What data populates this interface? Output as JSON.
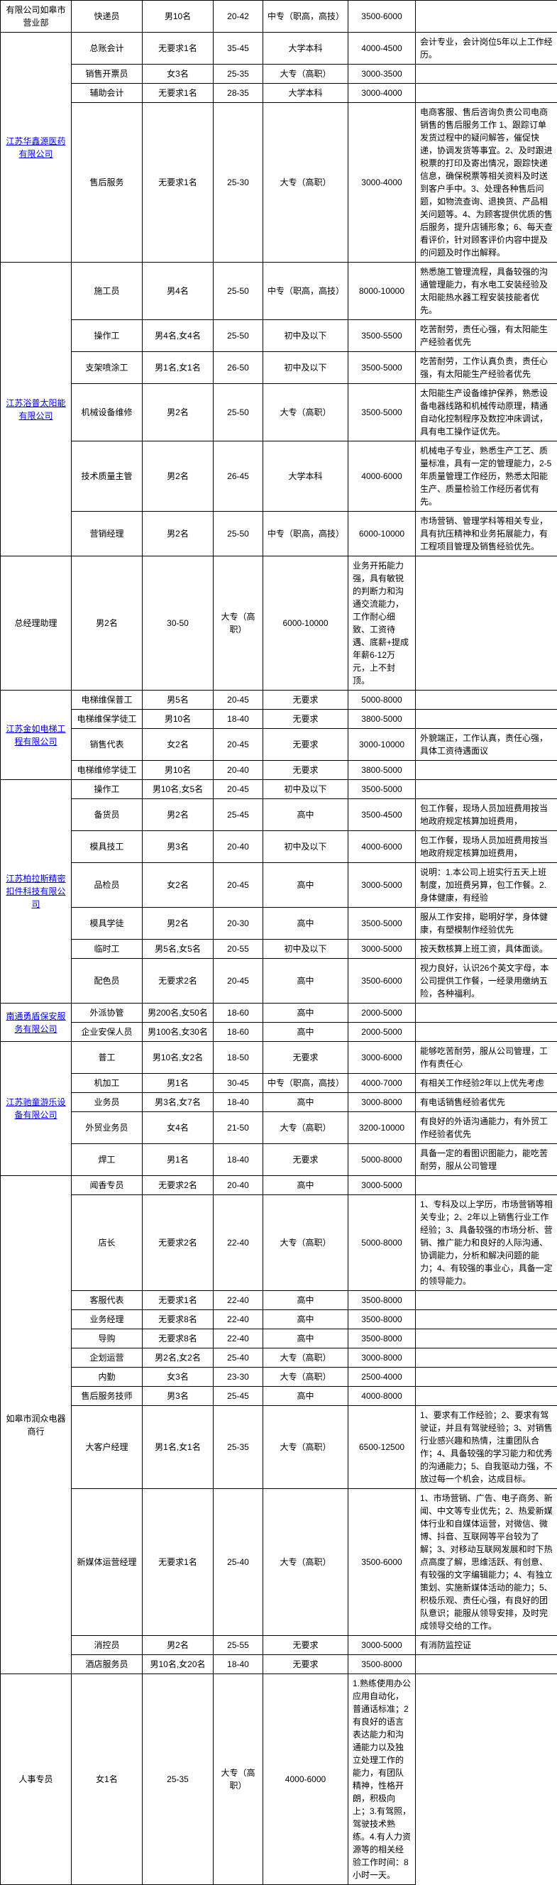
{
  "rows": [
    {
      "company": "有限公司如皋市营业部",
      "company_rowspan": 1,
      "company_class": "company-name",
      "position": "快递员",
      "count": "男10名",
      "age": "20-42",
      "edu": "中专（职高，高技）",
      "salary": "3500-6000",
      "remark": ""
    },
    {
      "company": "江苏华鑫源医药有限公司",
      "company_rowspan": 4,
      "company_class": "company-link",
      "position": "总账会计",
      "count": "无要求1名",
      "age": "35-45",
      "edu": "大学本科",
      "salary": "4000-4500",
      "remark": "会计专业，会计岗位5年以上工作经历。"
    },
    {
      "position": "销售开票员",
      "count": "女3名",
      "age": "25-35",
      "edu": "大专（高职）",
      "salary": "3000-3500",
      "remark": ""
    },
    {
      "position": "辅助会计",
      "count": "无要求1名",
      "age": "28-35",
      "edu": "大学本科",
      "salary": "3000-4000",
      "remark": ""
    },
    {
      "position": "售后服务",
      "count": "无要求1名",
      "age": "25-30",
      "edu": "大专（高职）",
      "salary": "3000-4000",
      "remark": "电商客服、售后咨询负责公司电商销售的售后服务工作 1、跟踪订单发货过程中的疑问解答，催促快递，协调发货等事宜。2、及时跟进税票的打印及寄出情况，跟踪快递信息，确保税票等相关资料及时送到客户手中。3、处理各种售后问题，如物流查询、退换货、产品相关问题等。4、为顾客提供优质的售后服务，提升店铺形象；6、每天查看评价，针对顾客评价内容中提及的问题及时作出解释。"
    },
    {
      "company": "江苏浴普太阳能有限公司",
      "company_rowspan": 6,
      "company_class": "company-link",
      "position": "施工员",
      "count": "男4名",
      "age": "25-50",
      "edu": "中专（职高，高技）",
      "salary": "8000-10000",
      "remark": "熟悉施工管理流程，具备较强的沟通管理能力，有水电工安装经验及太阳能热水器工程安装技能者优先。"
    },
    {
      "position": "操作工",
      "count": "男4名,女4名",
      "age": "25-50",
      "edu": "初中及以下",
      "salary": "3500-5500",
      "remark": "吃苦耐劳，责任心强，有太阳能生产经验者优先"
    },
    {
      "position": "支架喷涂工",
      "count": "男1名,女1名",
      "age": "26-50",
      "edu": "初中及以下",
      "salary": "3500-5000",
      "remark": "吃苦耐劳，工作认真负责，责任心强，有太阳能生产经验者优先"
    },
    {
      "position": "机械设备维修",
      "count": "男2名",
      "age": "25-50",
      "edu": "大专（高职）",
      "salary": "3500-5000",
      "remark": "太阳能生产设备维护保养，熟悉设备电器线路和机械传动原理，精通自动化控制程序及数控冲床调试，具有电工操作证优先。"
    },
    {
      "position": "技术质量主管",
      "count": "男2名",
      "age": "26-45",
      "edu": "大学本科",
      "salary": "4000-6000",
      "remark": "机械电子专业，熟悉生产工艺、质量标准，具有一定的管理能力，2-5年质量管理工作经历，熟悉太阳能生产、质量检验工作经历者优有先。"
    },
    {
      "position": "营销经理",
      "count": "男2名",
      "age": "25-50",
      "edu": "中专（职高，高技）",
      "salary": "6000-10000",
      "remark": "市场营销、管理学科等相关专业，具有抗压精神和业务拓展能力，有工程项目管理及销售经验优先。"
    },
    {
      "company": "",
      "company_rowspan": 1,
      "company_class": "",
      "position": "总经理助理",
      "count": "男2名",
      "age": "30-50",
      "edu": "大专（高职）",
      "salary": "6000-10000",
      "remark": "业务开拓能力强，具有敏锐的判断力和沟通交流能力，工作耐心细致、工资待遇、底薪+提成年薪6-12万元，上不封顶。",
      "company_hidden": true
    },
    {
      "company": "江苏金如电梯工程有限公司",
      "company_rowspan": 4,
      "company_class": "company-link",
      "position": "电梯维保普工",
      "count": "男5名",
      "age": "20-45",
      "edu": "无要求",
      "salary": "5000-8000",
      "remark": ""
    },
    {
      "position": "电梯维保学徒工",
      "count": "男10名",
      "age": "18-40",
      "edu": "无要求",
      "salary": "3800-5000",
      "remark": ""
    },
    {
      "position": "销售代表",
      "count": "女2名",
      "age": "20-45",
      "edu": "无要求",
      "salary": "3000-10000",
      "remark": "外貌端正，工作认真，责任心强，具体工资待遇面议"
    },
    {
      "position": "电梯维修学徒工",
      "count": "男10名",
      "age": "20-40",
      "edu": "无要求",
      "salary": "3800-5000",
      "remark": ""
    },
    {
      "company": "江苏柏拉斯精密扣件科技有限公司",
      "company_rowspan": 7,
      "company_class": "company-link",
      "position": "操作工",
      "count": "男10名,女5名",
      "age": "20-45",
      "edu": "初中及以下",
      "salary": "3500-5000",
      "remark": ""
    },
    {
      "position": "备货员",
      "count": "男2名",
      "age": "25-45",
      "edu": "高中",
      "salary": "3500-4500",
      "remark": "包工作餐，现场人员加班费用按当地政府规定核算加班费用，"
    },
    {
      "position": "模具技工",
      "count": "男3名",
      "age": "20-40",
      "edu": "初中及以下",
      "salary": "4000-6000",
      "remark": "包工作餐，现场人员加班费用按当地政府规定核算加班费用，"
    },
    {
      "position": "品检员",
      "count": "女2名",
      "age": "20-45",
      "edu": "高中",
      "salary": "3000-5000",
      "remark": "说明：1.本公司上班实行五天上班制度，加班费另算，包工作餐。2.身体健康，有经验"
    },
    {
      "position": "模具学徒",
      "count": "男2名",
      "age": "20-30",
      "edu": "高中",
      "salary": "3500-5000",
      "remark": "服从工作安排，聪明好学，身体健康，有塑模制作经验优先"
    },
    {
      "position": "临时工",
      "count": "男5名,女5名",
      "age": "20-55",
      "edu": "初中及以下",
      "salary": "3000-5000",
      "remark": "按天数核算上班工资，具体面谈。"
    },
    {
      "position": "配色员",
      "count": "无要求2名",
      "age": "20-45",
      "edu": "高中",
      "salary": "3500-6000",
      "remark": "视力良好，认识26个英文字母，本公司提供工作餐，一经录用缴纳五险，各种福利。"
    },
    {
      "company": "南通勇盾保安服务有限公司",
      "company_rowspan": 2,
      "company_class": "company-link",
      "position": "外派协管",
      "count": "男200名,女50名",
      "age": "18-60",
      "edu": "高中",
      "salary": "2000-5000",
      "remark": ""
    },
    {
      "position": "企业安保人员",
      "count": "男100名,女30名",
      "age": "18-60",
      "edu": "高中",
      "salary": "2000-5000",
      "remark": ""
    },
    {
      "company": "江苏驰童游乐设备有限公司",
      "company_rowspan": 5,
      "company_class": "company-link",
      "position": "普工",
      "count": "男10名,女2名",
      "age": "18-50",
      "edu": "无要求",
      "salary": "3000-6000",
      "remark": "能够吃苦耐劳，服从公司管理，工作有责任心"
    },
    {
      "position": "机加工",
      "count": "男1名",
      "age": "30-45",
      "edu": "中专（职高，高技）",
      "salary": "4000-7000",
      "remark": "有相关工作经验2年以上优先考虑"
    },
    {
      "position": "业务员",
      "count": "男3名,女7名",
      "age": "18-40",
      "edu": "高中",
      "salary": "3000-8000",
      "remark": "有电话销售经验者优先"
    },
    {
      "position": "外贸业务员",
      "count": "女4名",
      "age": "21-50",
      "edu": "大专（高职）",
      "salary": "3200-10000",
      "remark": "有良好的外语沟通能力，有外贸工作经验者优先"
    },
    {
      "position": "焊工",
      "count": "男1名",
      "age": "18-40",
      "edu": "无要求",
      "salary": "5000-8000",
      "remark": "具备一定的看图识图能力，能吃苦耐劳，服从公司管理"
    },
    {
      "company": "如皋市润众电器商行",
      "company_rowspan": 12,
      "company_class": "company-name",
      "position": "闻香专员",
      "count": "无要求2名",
      "age": "20-40",
      "edu": "高中",
      "salary": "3000-5000",
      "remark": ""
    },
    {
      "position": "店长",
      "count": "无要求2名",
      "age": "22-40",
      "edu": "大专（高职）",
      "salary": "5000-8000",
      "remark": "1、专科及以上学历，市场营销等相关专业；2、2年以上销售行业工作经验；3、具备较强的市场分析、营销、推广能力和良好的人际沟通、协调能力，分析和解决问题的能力；4、有较强的事业心，具备一定的领导能力。"
    },
    {
      "position": "客服代表",
      "count": "无要求1名",
      "age": "22-40",
      "edu": "高中",
      "salary": "3500-8000",
      "remark": ""
    },
    {
      "position": "业务经理",
      "count": "无要求8名",
      "age": "22-40",
      "edu": "高中",
      "salary": "3500-8000",
      "remark": ""
    },
    {
      "position": "导购",
      "count": "无要求8名",
      "age": "22-40",
      "edu": "高中",
      "salary": "3500-8000",
      "remark": ""
    },
    {
      "position": "企划运营",
      "count": "男2名,女2名",
      "age": "25-40",
      "edu": "大专（高职）",
      "salary": "3000-8000",
      "remark": ""
    },
    {
      "position": "内勤",
      "count": "女3名",
      "age": "23-30",
      "edu": "大专（高职）",
      "salary": "2500-4000",
      "remark": ""
    },
    {
      "position": "售后服务技师",
      "count": "男3名",
      "age": "25-45",
      "edu": "高中",
      "salary": "4000-8000",
      "remark": ""
    },
    {
      "position": "大客户经理",
      "count": "男1名,女1名",
      "age": "25-35",
      "edu": "大专（高职）",
      "salary": "6500-12500",
      "remark": "1、要求有工作经验；2、要求有驾驶证，并且有驾驶经验；3、对销售行业感兴趣和热情，注重团队合作；4、具备较强的学习能力和优秀的沟通能力；5、自我驱动力强，不放过每一个机会，达成目标。"
    },
    {
      "position": "新媒体运营经理",
      "count": "无要求1名",
      "age": "25-40",
      "edu": "大专（高职）",
      "salary": "3500-6000",
      "remark": "1、市场营销、广告、电子商务、新闻、中文等专业优先；2、热爱新媒体行业和自媒体运营，对微信、微博、抖音、互联网等平台较为了解；3、对移动互联网发展和时下热点高度了解，思维活跃、有创意、有较强的文字编辑能力；4、有独立策划、实施新媒体活动的能力；5、积极乐观、责任心强，有良好的团队意识；能服从领导安排，及时完成领导交给的工作。"
    },
    {
      "position": "消控员",
      "count": "男2名",
      "age": "25-55",
      "edu": "无要求",
      "salary": "3000-5000",
      "remark": "有消防监控证"
    },
    {
      "position": "酒店服务员",
      "count": "男10名,女20名",
      "age": "18-40",
      "edu": "无要求",
      "salary": "3500-8000",
      "remark": ""
    },
    {
      "company": "",
      "company_rowspan": 1,
      "company_class": "",
      "company_hidden": true,
      "position": "人事专员",
      "count": "女1名",
      "age": "25-35",
      "edu": "大专（高职）",
      "salary": "4000-6000",
      "remark": "1.熟练使用办公应用自动化，普通话标准；2 有良好的语言表达能力和沟通能力以及独立处理工作的能力，有团队精神，性格开朗，积极向上；3.有驾照，驾驶技术熟练。4.有人力资源等的相关经验工作时间：8小时一天。"
    }
  ]
}
